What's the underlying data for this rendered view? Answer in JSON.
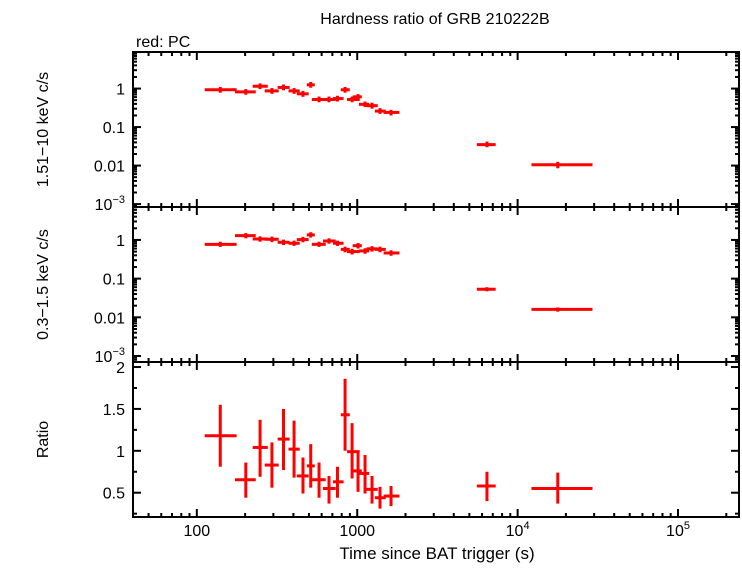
{
  "chart_data": {
    "type": "scatter",
    "title": "Hardness ratio of GRB 210222B",
    "subtitle": "red: PC",
    "xlabel": "Time since BAT trigger (s)",
    "xscale": "log",
    "xlim": [
      40,
      240000
    ],
    "xticks": [
      {
        "v": 100,
        "label": "100"
      },
      {
        "v": 1000,
        "label": "1000"
      },
      {
        "v": 10000,
        "label": "10",
        "exp": "4"
      },
      {
        "v": 100000,
        "label": "10",
        "exp": "5"
      }
    ],
    "color": "#ff0000",
    "grid": false,
    "x": [
      140,
      202,
      248,
      294,
      347,
      404,
      459,
      513,
      578,
      667,
      753,
      840,
      929,
      1012,
      1119,
      1237,
      1387,
      1625,
      6440,
      17800
    ],
    "xlo": [
      112,
      173,
      223,
      265,
      319,
      373,
      420,
      485,
      521,
      612,
      706,
      790,
      864,
      937,
      1025,
      1143,
      1288,
      1460,
      5570,
      12200
    ],
    "xhi": [
      177,
      233,
      277,
      324,
      379,
      438,
      498,
      544,
      636,
      734,
      822,
      899,
      1036,
      1068,
      1189,
      1342,
      1507,
      1834,
      7300,
      29300
    ],
    "panels": [
      {
        "ylabel": "1.51−10 keV c/s",
        "yscale": "log",
        "ylim": [
          0.00084,
          8.9
        ],
        "yticks": [
          {
            "v": 1,
            "label": "1"
          },
          {
            "v": 0.1,
            "label": "0.1"
          },
          {
            "v": 0.01,
            "label": "0.01"
          },
          {
            "v": 0.001,
            "label": "10",
            "exp": "−3"
          }
        ],
        "y": [
          0.93,
          0.82,
          1.15,
          0.87,
          1.07,
          0.87,
          0.73,
          1.25,
          0.52,
          0.52,
          0.55,
          0.93,
          0.52,
          0.61,
          0.39,
          0.36,
          0.26,
          0.24,
          0.035,
          0.0105
        ],
        "ylo": [
          0.78,
          0.69,
          0.97,
          0.73,
          0.9,
          0.73,
          0.61,
          1.05,
          0.44,
          0.44,
          0.46,
          0.78,
          0.44,
          0.51,
          0.33,
          0.3,
          0.22,
          0.2,
          0.03,
          0.0085
        ],
        "yhi": [
          1.1,
          0.97,
          1.36,
          1.03,
          1.27,
          1.03,
          0.87,
          1.48,
          0.62,
          0.62,
          0.65,
          1.1,
          0.62,
          0.72,
          0.46,
          0.43,
          0.31,
          0.28,
          0.042,
          0.0125
        ]
      },
      {
        "ylabel": "0.3−1.5 keV c/s",
        "yscale": "log",
        "ylim": [
          0.0007,
          7.1
        ],
        "yticks": [
          {
            "v": 1,
            "label": "1"
          },
          {
            "v": 0.1,
            "label": "0.1"
          },
          {
            "v": 0.01,
            "label": "0.01"
          },
          {
            "v": 0.001,
            "label": "10",
            "exp": "−3"
          }
        ],
        "y": [
          0.77,
          1.29,
          1.06,
          1.04,
          0.87,
          0.82,
          1.02,
          1.35,
          0.77,
          0.94,
          0.82,
          0.57,
          0.5,
          0.71,
          0.52,
          0.59,
          0.57,
          0.46,
          0.053,
          0.016
        ],
        "ylo": [
          0.66,
          1.1,
          0.9,
          0.88,
          0.74,
          0.7,
          0.87,
          1.15,
          0.66,
          0.8,
          0.7,
          0.48,
          0.42,
          0.6,
          0.44,
          0.5,
          0.48,
          0.39,
          0.047,
          0.014
        ],
        "yhi": [
          0.9,
          1.5,
          1.24,
          1.22,
          1.02,
          0.96,
          1.2,
          1.58,
          0.9,
          1.1,
          0.96,
          0.67,
          0.59,
          0.83,
          0.61,
          0.69,
          0.67,
          0.54,
          0.06,
          0.018
        ]
      },
      {
        "ylabel": "Ratio",
        "yscale": "linear",
        "ylim": [
          0.21,
          2.06
        ],
        "yticks": [
          {
            "v": 0.5,
            "label": "0.5"
          },
          {
            "v": 1,
            "label": "1"
          },
          {
            "v": 1.5,
            "label": "1.5"
          },
          {
            "v": 2,
            "label": "2"
          }
        ],
        "y": [
          1.18,
          0.655,
          1.04,
          0.83,
          1.14,
          1.02,
          0.7,
          0.82,
          0.655,
          0.55,
          0.63,
          1.43,
          0.99,
          0.76,
          0.73,
          0.54,
          0.44,
          0.46,
          0.58,
          0.55
        ],
        "ylo": [
          0.81,
          0.44,
          0.69,
          0.56,
          0.77,
          0.68,
          0.49,
          0.56,
          0.44,
          0.37,
          0.44,
          1.0,
          0.67,
          0.51,
          0.49,
          0.37,
          0.31,
          0.34,
          0.4,
          0.37
        ],
        "yhi": [
          1.55,
          0.86,
          1.37,
          1.1,
          1.5,
          1.36,
          0.92,
          1.08,
          0.86,
          0.7,
          0.81,
          1.86,
          1.33,
          1.0,
          0.95,
          0.7,
          0.57,
          0.58,
          0.75,
          0.74
        ]
      }
    ]
  }
}
